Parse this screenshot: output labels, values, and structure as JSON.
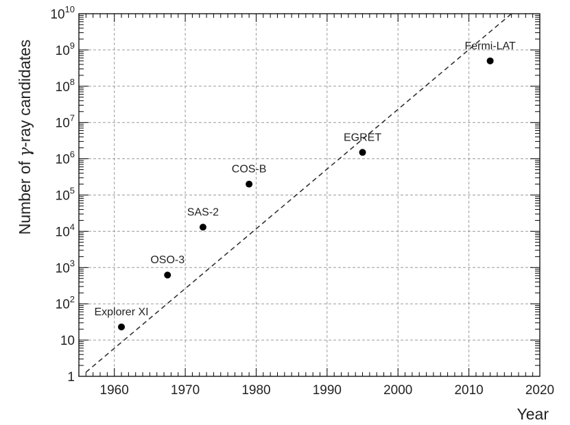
{
  "chart_data": {
    "type": "scatter",
    "title": "",
    "xlabel": "Year",
    "ylabel_prefix": "Number of ",
    "ylabel_symbol": "γ",
    "ylabel_suffix": "-ray candidates",
    "xlim": [
      1955,
      2020
    ],
    "ylim": [
      1,
      10000000000
    ],
    "y_scale": "log",
    "grid": true,
    "x_ticks": [
      1960,
      1970,
      1980,
      1990,
      2000,
      2010,
      2020
    ],
    "x_tick_labels": [
      "1960",
      "1970",
      "1980",
      "1990",
      "2000",
      "2010",
      "2020"
    ],
    "y_tick_labels": [
      {
        "base": "1",
        "exp": ""
      },
      {
        "base": "10",
        "exp": ""
      },
      {
        "base": "10",
        "exp": "2"
      },
      {
        "base": "10",
        "exp": "3"
      },
      {
        "base": "10",
        "exp": "4"
      },
      {
        "base": "10",
        "exp": "5"
      },
      {
        "base": "10",
        "exp": "6"
      },
      {
        "base": "10",
        "exp": "7"
      },
      {
        "base": "10",
        "exp": "8"
      },
      {
        "base": "10",
        "exp": "9"
      },
      {
        "base": "10",
        "exp": "10"
      }
    ],
    "points": [
      {
        "label": "Explorer XI",
        "x": 1961,
        "y": 23
      },
      {
        "label": "OSO-3",
        "x": 1967.5,
        "y": 621
      },
      {
        "label": "SAS-2",
        "x": 1972.5,
        "y": 13000
      },
      {
        "label": "COS-B",
        "x": 1979,
        "y": 200000
      },
      {
        "label": "EGRET",
        "x": 1995,
        "y": 1500000
      },
      {
        "label": "Fermi-LAT",
        "x": 2013,
        "y": 500000000
      }
    ],
    "trend_line": {
      "style": "dashed",
      "x": [
        1956,
        2016
      ],
      "y": [
        1.3,
        10000000000
      ]
    },
    "colors": {
      "points": "#000000",
      "trend": "#333333",
      "grid": "#9a9a9a"
    }
  }
}
